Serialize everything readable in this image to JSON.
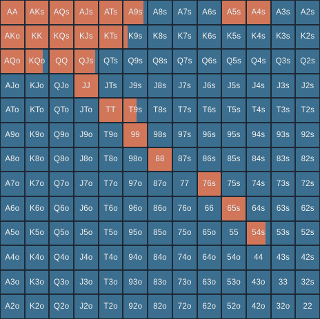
{
  "colors": {
    "fold": "#3c6f8f",
    "raise": "#d2765a",
    "background": "#1d2a36",
    "text": "#f3f6f8"
  },
  "range_grid": {
    "rows": [
      [
        "AA",
        "AKs",
        "AQs",
        "AJs",
        "ATs",
        "A9s",
        "A8s",
        "A7s",
        "A6s",
        "A5s",
        "A4s",
        "A3s",
        "A2s"
      ],
      [
        "AKo",
        "KK",
        "KQs",
        "KJs",
        "KTs",
        "K9s",
        "K8s",
        "K7s",
        "K6s",
        "K5s",
        "K4s",
        "K3s",
        "K2s"
      ],
      [
        "AQo",
        "KQo",
        "QQ",
        "QJs",
        "QTs",
        "Q9s",
        "Q8s",
        "Q7s",
        "Q6s",
        "Q5s",
        "Q4s",
        "Q3s",
        "Q2s"
      ],
      [
        "AJo",
        "KJo",
        "QJo",
        "JJ",
        "JTs",
        "J9s",
        "J8s",
        "J7s",
        "J6s",
        "J5s",
        "J4s",
        "J3s",
        "J2s"
      ],
      [
        "ATo",
        "KTo",
        "QTo",
        "JTo",
        "TT",
        "T9s",
        "T8s",
        "T7s",
        "T6s",
        "T5s",
        "T4s",
        "T3s",
        "T2s"
      ],
      [
        "A9o",
        "K9o",
        "Q9o",
        "J9o",
        "T9o",
        "99",
        "98s",
        "97s",
        "96s",
        "95s",
        "94s",
        "93s",
        "92s"
      ],
      [
        "A8o",
        "K8o",
        "Q8o",
        "J8o",
        "T8o",
        "98o",
        "88",
        "87s",
        "86s",
        "85s",
        "84s",
        "83s",
        "82s"
      ],
      [
        "A7o",
        "K7o",
        "Q7o",
        "J7o",
        "T7o",
        "97o",
        "87o",
        "77",
        "76s",
        "75s",
        "74s",
        "73s",
        "72s"
      ],
      [
        "A6o",
        "K6o",
        "Q6o",
        "J6o",
        "T6o",
        "96o",
        "86o",
        "76o",
        "66",
        "65s",
        "64s",
        "63s",
        "62s"
      ],
      [
        "A5o",
        "K5o",
        "Q5o",
        "J5o",
        "T5o",
        "95o",
        "85o",
        "75o",
        "65o",
        "55",
        "54s",
        "53s",
        "52s"
      ],
      [
        "A4o",
        "K4o",
        "Q4o",
        "J4o",
        "T4o",
        "94o",
        "84o",
        "74o",
        "64o",
        "54o",
        "44",
        "43s",
        "42s"
      ],
      [
        "A3o",
        "K3o",
        "Q3o",
        "J3o",
        "T3o",
        "93o",
        "83o",
        "73o",
        "63o",
        "53o",
        "43o",
        "33",
        "32s"
      ],
      [
        "A2o",
        "K2o",
        "Q2o",
        "J2o",
        "T2o",
        "92o",
        "82o",
        "72o",
        "62o",
        "52o",
        "42o",
        "32o",
        "22"
      ]
    ],
    "raise_fractions": [
      [
        1,
        1,
        1,
        1,
        1,
        0.85,
        0,
        0,
        0,
        1,
        1,
        0,
        0
      ],
      [
        1,
        1,
        1,
        1,
        1,
        0.15,
        0,
        0,
        0,
        0,
        0,
        0,
        0
      ],
      [
        1,
        0.75,
        1,
        0.9,
        0,
        0,
        0,
        0,
        0,
        0,
        0,
        0,
        0
      ],
      [
        0,
        0,
        0,
        1,
        0,
        0,
        0,
        0,
        0,
        0,
        0,
        0,
        0
      ],
      [
        0,
        0,
        0,
        0,
        1,
        0.55,
        0,
        0,
        0,
        0,
        0,
        0,
        0
      ],
      [
        0,
        0,
        0,
        0,
        0,
        1,
        0,
        0,
        0,
        0,
        0,
        0,
        0
      ],
      [
        0,
        0,
        0,
        0,
        0,
        0,
        1,
        0,
        0,
        0,
        0,
        0,
        0
      ],
      [
        0,
        0,
        0,
        0,
        0,
        0,
        0,
        0,
        1,
        0,
        0,
        0,
        0
      ],
      [
        0,
        0,
        0,
        0,
        0,
        0,
        0,
        0,
        0,
        1,
        0,
        0,
        0
      ],
      [
        0,
        0,
        0,
        0,
        0,
        0,
        0,
        0,
        0,
        0,
        0.8,
        0,
        0
      ],
      [
        0,
        0,
        0,
        0,
        0,
        0,
        0,
        0,
        0,
        0,
        0,
        0,
        0
      ],
      [
        0,
        0,
        0,
        0,
        0,
        0,
        0,
        0,
        0,
        0,
        0,
        0,
        0
      ],
      [
        0,
        0,
        0,
        0,
        0,
        0,
        0,
        0,
        0,
        0,
        0,
        0,
        0
      ]
    ]
  }
}
